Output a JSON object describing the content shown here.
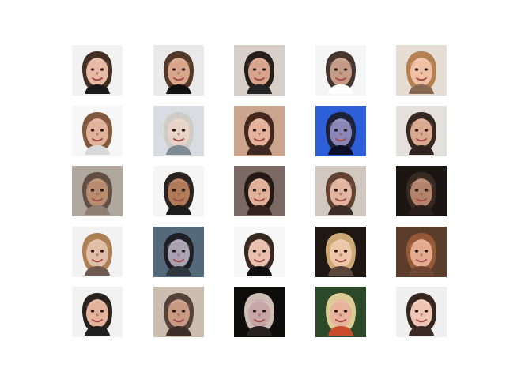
{
  "figure": {
    "background": "#ffffff",
    "rows": 5,
    "cols": 5,
    "tiles": [
      {
        "bg": "#f2f2f2",
        "face": "#e8b9a3",
        "hair": "#3a2418",
        "shirt": "#1a1a1a"
      },
      {
        "bg": "#e9e9e9",
        "face": "#d9a58a",
        "hair": "#4a2e1f",
        "shirt": "#111111"
      },
      {
        "bg": "#d8d0c8",
        "face": "#d6a48c",
        "hair": "#1c1411",
        "shirt": "#242424"
      },
      {
        "bg": "#f5f5f5",
        "face": "#c49b86",
        "hair": "#3b2a23",
        "shirt": "#ffffff"
      },
      {
        "bg": "#e6ddd4",
        "face": "#efc0a3",
        "hair": "#b27a48",
        "shirt": "#8a6a55"
      },
      {
        "bg": "#f7f7f7",
        "face": "#e2b39b",
        "hair": "#7a4f33",
        "shirt": "#d8d8d8"
      },
      {
        "bg": "#d9dde1",
        "face": "#e9d2c6",
        "hair": "#cfcac6",
        "shirt": "#7f8a92"
      },
      {
        "bg": "#caa48d",
        "face": "#e4b19b",
        "hair": "#3b2117",
        "shirt": "#3e2a22"
      },
      {
        "bg": "#2c5fd9",
        "face": "#8a86b8",
        "hair": "#1b1c2f",
        "shirt": "#0c1026"
      },
      {
        "bg": "#e4e0db",
        "face": "#d9aa90",
        "hair": "#2b1c16",
        "shirt": "#2f2420"
      },
      {
        "bg": "#b0a79e",
        "face": "#b88c6e",
        "hair": "#5e4a3f",
        "shirt": "#8f7e74"
      },
      {
        "bg": "#f5f5f5",
        "face": "#b07a59",
        "hair": "#1f1612",
        "shirt": "#1d1d1d"
      },
      {
        "bg": "#7b6a63",
        "face": "#e0b099",
        "hair": "#201511",
        "shirt": "#35241d"
      },
      {
        "bg": "#d1c9c1",
        "face": "#e1b59f",
        "hair": "#5d3b2a",
        "shirt": "#3b2c26"
      },
      {
        "bg": "#1b1614",
        "face": "#b3846b",
        "hair": "#3a2a22",
        "shirt": "#2a1f1a"
      },
      {
        "bg": "#f2f2f2",
        "face": "#e1bea7",
        "hair": "#a8784b",
        "shirt": "#6f5a4d"
      },
      {
        "bg": "#546a7a",
        "face": "#a9a2b3",
        "hair": "#1c1b21",
        "shirt": "#30363d"
      },
      {
        "bg": "#f7f7f7",
        "face": "#e9c0ad",
        "hair": "#2b1b15",
        "shirt": "#101010"
      },
      {
        "bg": "#1e1712",
        "face": "#edc7a8",
        "hair": "#d8b07a",
        "shirt": "#5a463a"
      },
      {
        "bg": "#5b3d2b",
        "face": "#e3ab8f",
        "hair": "#9a5a36",
        "shirt": "#6e4533"
      },
      {
        "bg": "#f2f2f2",
        "face": "#e4b39b",
        "hair": "#1e1512",
        "shirt": "#202020"
      },
      {
        "bg": "#cbbdb0",
        "face": "#c99a82",
        "hair": "#4d3a30",
        "shirt": "#3c2f28"
      },
      {
        "bg": "#0f0d0c",
        "face": "#c7a6a8",
        "hair": "#d7c8bd",
        "shirt": "#2a2222"
      },
      {
        "bg": "#2c4a2a",
        "face": "#e8b39c",
        "hair": "#e4d39a",
        "shirt": "#c94c2c"
      },
      {
        "bg": "#efefef",
        "face": "#efc6b5",
        "hair": "#2a1a14",
        "shirt": "#3c2b25"
      }
    ]
  }
}
